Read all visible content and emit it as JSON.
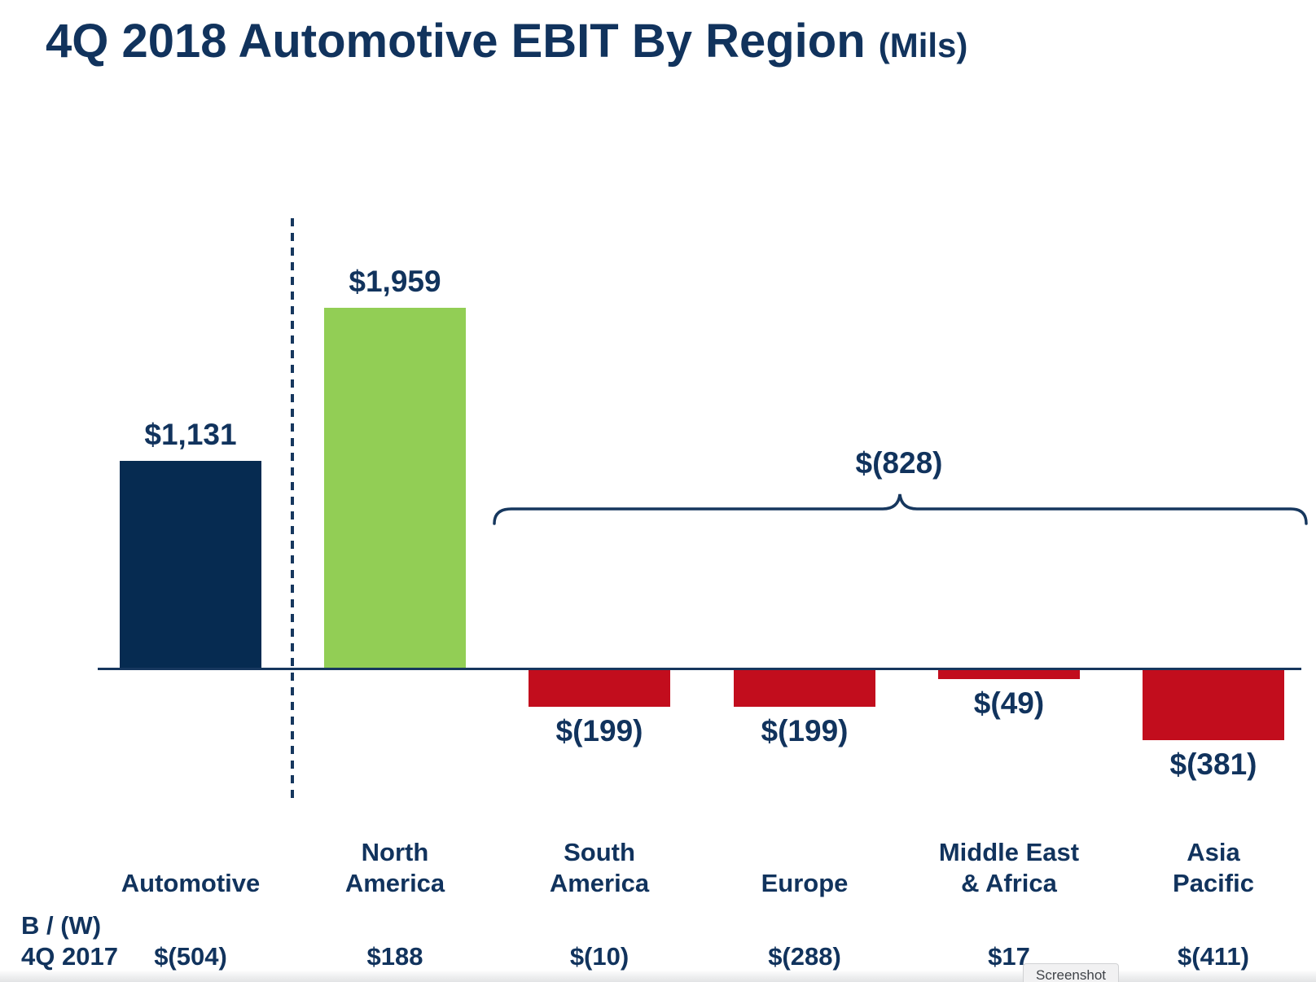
{
  "title": {
    "main": "4Q 2018 Automotive EBIT By Region",
    "suffix": "(Mils)"
  },
  "chart_data": {
    "type": "bar",
    "title": "4Q 2018 Automotive EBIT By Region (Mils)",
    "unit": "USD millions",
    "categories": [
      "Automotive",
      "North America",
      "South America",
      "Europe",
      "Middle East & Africa",
      "Asia Pacific"
    ],
    "category_label_lines": [
      [
        "Automotive"
      ],
      [
        "North",
        "America"
      ],
      [
        "South",
        "America"
      ],
      [
        "Europe"
      ],
      [
        "Middle East",
        "& Africa"
      ],
      [
        "Asia",
        "Pacific"
      ]
    ],
    "values": [
      1131,
      1959,
      -199,
      -199,
      -49,
      -381
    ],
    "data_labels": [
      "$1,131",
      "$1,959",
      "$(199)",
      "$(199)",
      "$(49)",
      "$(381)"
    ],
    "bar_roles": [
      "total",
      "positive",
      "negative",
      "negative",
      "negative",
      "negative"
    ],
    "group_annotation": {
      "label": "$(828)",
      "applies_to": [
        "South America",
        "Europe",
        "Middle East & Africa",
        "Asia Pacific"
      ]
    },
    "comparison_row": {
      "label_line1": "B / (W)",
      "label_line2": "4Q 2017",
      "values": [
        "$(504)",
        "$188",
        "$(10)",
        "$(288)",
        "$17",
        "$(411)"
      ]
    },
    "colors": {
      "total_bar": "#062b51",
      "positive_bar": "#92ce55",
      "negative_bar": "#c20d1d",
      "text": "#11335d",
      "axis": "#16375e"
    },
    "layout_hints": {
      "grid": false,
      "legend": false,
      "separator": "dashed line between Automotive total and regional bars",
      "ylim": [
        -450,
        2100
      ]
    }
  },
  "tooltip": {
    "label": "Screenshot"
  }
}
